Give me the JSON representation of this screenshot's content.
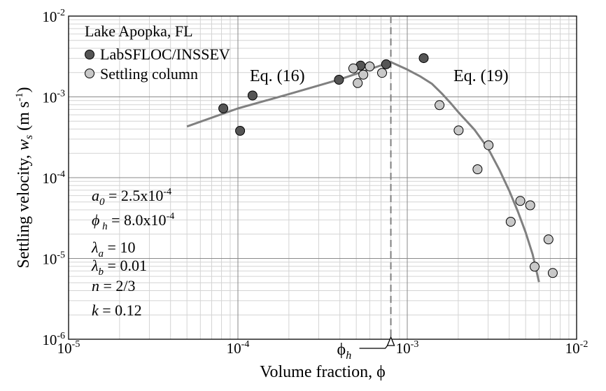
{
  "chart_data": {
    "type": "scatter",
    "title": "",
    "xlabel": "Volume fraction, ϕ",
    "ylabel_main": "Settling velocity, ",
    "ylabel_var": "w",
    "ylabel_sub": "s",
    "ylabel_unit": " (m s",
    "ylabel_unit_sup": "-1",
    "ylabel_close": ")",
    "x_log": true,
    "y_log": true,
    "xlim": [
      1e-05,
      0.01
    ],
    "ylim": [
      1e-06,
      0.01
    ],
    "grid": true,
    "x_ticks": [
      {
        "base": "10",
        "exp": "-5",
        "value": 1e-05
      },
      {
        "base": "10",
        "exp": "-4",
        "value": 0.0001
      },
      {
        "base": "10",
        "exp": "-3",
        "value": 0.001
      },
      {
        "base": "10",
        "exp": "-2",
        "value": 0.01
      }
    ],
    "y_ticks": [
      {
        "base": "10",
        "exp": "-6",
        "value": 1e-06
      },
      {
        "base": "10",
        "exp": "-5",
        "value": 1e-05
      },
      {
        "base": "10",
        "exp": "-4",
        "value": 0.0001
      },
      {
        "base": "10",
        "exp": "-3",
        "value": 0.001
      },
      {
        "base": "10",
        "exp": "-2",
        "value": 0.01
      }
    ],
    "legend": {
      "placement": "top-left",
      "heading": "Lake Apopka, FL",
      "entries": [
        "LabSFLOC/INSSEV",
        "Settling column"
      ]
    },
    "series": [
      {
        "name": "LabSFLOC/INSSEV",
        "color": "#555555",
        "points": [
          {
            "x": 8.2e-05,
            "y": 0.00072
          },
          {
            "x": 0.000103,
            "y": 0.00038
          },
          {
            "x": 0.000122,
            "y": 0.00104
          },
          {
            "x": 0.000395,
            "y": 0.00163
          },
          {
            "x": 0.00053,
            "y": 0.00244
          },
          {
            "x": 0.00075,
            "y": 0.00253
          },
          {
            "x": 0.00125,
            "y": 0.00302
          }
        ]
      },
      {
        "name": "Settling column",
        "color": "#c8c8c8",
        "points": [
          {
            "x": 0.00048,
            "y": 0.00225
          },
          {
            "x": 0.00051,
            "y": 0.00148
          },
          {
            "x": 0.00055,
            "y": 0.00188
          },
          {
            "x": 0.0006,
            "y": 0.00238
          },
          {
            "x": 0.00071,
            "y": 0.00198
          },
          {
            "x": 0.00155,
            "y": 0.00079
          },
          {
            "x": 0.00201,
            "y": 0.000385
          },
          {
            "x": 0.0026,
            "y": 0.000127
          },
          {
            "x": 0.00302,
            "y": 0.000252
          },
          {
            "x": 0.00408,
            "y": 2.85e-05
          },
          {
            "x": 0.00465,
            "y": 5.15e-05
          },
          {
            "x": 0.00532,
            "y": 4.55e-05
          },
          {
            "x": 0.00565,
            "y": 7.9e-06
          },
          {
            "x": 0.00682,
            "y": 1.72e-05
          },
          {
            "x": 0.00723,
            "y": 6.6e-06
          }
        ]
      }
    ],
    "fit_curves": [
      {
        "label": "Eq. (16)",
        "color": "#808080",
        "points": [
          [
            5e-05,
            0.00043
          ],
          [
            0.0001,
            0.00072
          ],
          [
            0.0002,
            0.00108
          ],
          [
            0.0004,
            0.00165
          ],
          [
            0.0006,
            0.0022
          ],
          [
            0.0008,
            0.0027
          ]
        ]
      },
      {
        "label": "Eq. (19)",
        "color": "#808080",
        "points": [
          [
            0.0008,
            0.0027
          ],
          [
            0.001,
            0.00218
          ],
          [
            0.0012,
            0.00178
          ],
          [
            0.0014,
            0.00145
          ],
          [
            0.0016,
            0.0011
          ],
          [
            0.0018,
            0.00084
          ],
          [
            0.002,
            0.00065
          ],
          [
            0.0025,
            0.00039
          ],
          [
            0.003,
            0.00023
          ],
          [
            0.0035,
            0.000125
          ],
          [
            0.004,
            6.9e-05
          ],
          [
            0.0045,
            3.8e-05
          ],
          [
            0.005,
            2.1e-05
          ],
          [
            0.0055,
            1.12e-05
          ],
          [
            0.006,
            5.1e-06
          ]
        ]
      }
    ],
    "annotations": {
      "fit_left_label": "Eq. (16)",
      "fit_right_label": "Eq. (19)",
      "phi_h": {
        "symbol": "ϕ",
        "sub": "h",
        "x": 0.0008
      },
      "params": [
        {
          "var": "a",
          "sub": "0",
          "rest": " = 2.5x10",
          "sup": "-4"
        },
        {
          "var": "ϕ",
          "sub": " h",
          "rest": "  = 8.0x10",
          "sup": "-4"
        },
        {
          "var": "λ",
          "sub": "a",
          "rest": " = 10",
          "sup": ""
        },
        {
          "var": "λ",
          "sub": "b",
          "rest": " = 0.01",
          "sup": ""
        },
        {
          "var": "n",
          "sub": "",
          "rest": " = 2/3",
          "sup": ""
        },
        {
          "var": "k",
          "sub": "",
          "rest": " = 0.12",
          "sup": ""
        }
      ]
    }
  }
}
